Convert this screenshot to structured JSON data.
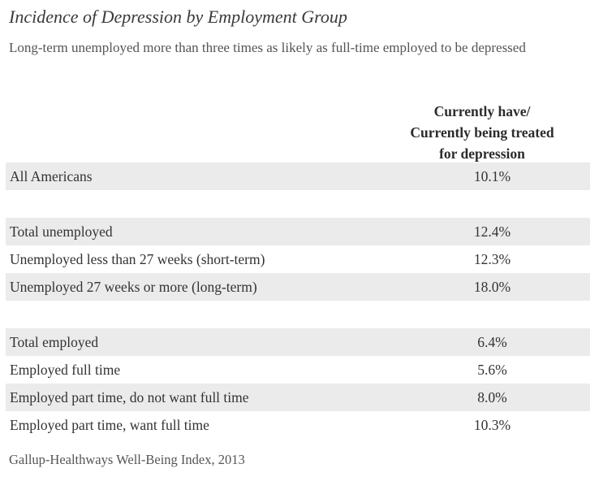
{
  "chart_data": {
    "type": "table",
    "title": "Incidence of Depression by Employment Group",
    "subtitle": "Long-term unemployed more than three times as likely as full-time employed to be depressed",
    "column_header": "Currently have/ Currently being treated for depression",
    "column_header_lines": [
      "Currently have/",
      "Currently being treated",
      "for depression"
    ],
    "rows": [
      {
        "label": "All Americans",
        "value": "10.1%",
        "shaded": true
      },
      {
        "label": "",
        "value": "",
        "shaded": false
      },
      {
        "label": "Total unemployed",
        "value": "12.4%",
        "shaded": true
      },
      {
        "label": "Unemployed less than 27 weeks (short-term)",
        "value": "12.3%",
        "shaded": false
      },
      {
        "label": "Unemployed 27 weeks or more (long-term)",
        "value": "18.0%",
        "shaded": true
      },
      {
        "label": "",
        "value": "",
        "shaded": false
      },
      {
        "label": "Total employed",
        "value": "6.4%",
        "shaded": true
      },
      {
        "label": "Employed full time",
        "value": "5.6%",
        "shaded": false
      },
      {
        "label": "Employed part time, do not want full time",
        "value": "8.0%",
        "shaded": true
      },
      {
        "label": "Employed part time, want full time",
        "value": "10.3%",
        "shaded": false
      }
    ],
    "values": [
      10.1,
      12.4,
      12.3,
      18.0,
      6.4,
      5.6,
      8.0,
      10.3
    ],
    "source": "Gallup-Healthways Well-Being Index, 2013"
  },
  "colors": {
    "row_shade": "#ebebeb",
    "text": "#333333"
  }
}
